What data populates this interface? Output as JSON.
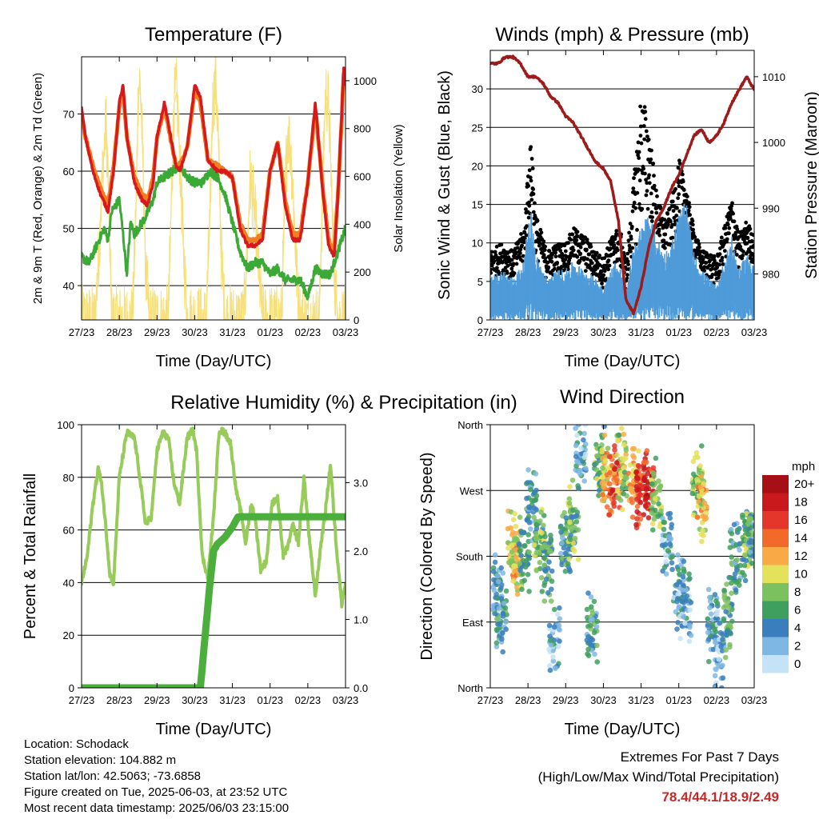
{
  "colors": {
    "temp_red": "#d7191c",
    "temp_orange": "#f07f22",
    "dewpoint_green": "#3aa935",
    "solar_yellow": "#f7e07a",
    "wind_blue": "#4f9bd9",
    "gust_black": "#000000",
    "pressure_maroon": "#9e1b1b",
    "rh_lightgreen": "#97cc5a",
    "rain_green": "#4cae3d",
    "extremes_red": "#c62828"
  },
  "x_ticks": [
    "27/23",
    "28/23",
    "29/23",
    "30/23",
    "31/23",
    "01/23",
    "02/23",
    "03/23"
  ],
  "chart_data": [
    {
      "id": "temperature",
      "type": "line",
      "title": "Temperature (F)",
      "xlabel": "Time (Day/UTC)",
      "ylabel": "2m & 9m T (Red, Orange) & 2m Td (Green)",
      "y2label": "Solar Insolation (Yellow)",
      "x_ticks": [
        "27/23",
        "28/23",
        "29/23",
        "30/23",
        "31/23",
        "01/23",
        "02/23",
        "03/23"
      ],
      "xlim": [
        0,
        7
      ],
      "ylim": [
        34,
        80
      ],
      "y_ticks": [
        40,
        50,
        60,
        70
      ],
      "y2lim": [
        0,
        1100
      ],
      "y2_ticks": [
        0,
        200,
        400,
        600,
        800,
        1000
      ],
      "series": [
        {
          "name": "2m T",
          "color": "#d7191c",
          "x": [
            0,
            0.1,
            0.3,
            0.5,
            0.7,
            0.85,
            1.0,
            1.1,
            1.2,
            1.4,
            1.6,
            1.75,
            1.9,
            2.0,
            2.2,
            2.5,
            2.6,
            2.8,
            3.0,
            3.15,
            3.35,
            3.6,
            3.8,
            4.0,
            4.2,
            4.4,
            4.6,
            4.8,
            5.0,
            5.2,
            5.4,
            5.6,
            5.8,
            6.0,
            6.2,
            6.4,
            6.55,
            6.7,
            6.8,
            6.9,
            6.95,
            7.0
          ],
          "values": [
            71,
            66,
            60,
            56,
            53,
            60,
            72,
            75,
            66,
            58,
            55,
            54,
            58,
            66,
            72,
            61,
            60,
            64,
            75,
            73,
            62,
            60,
            60,
            59,
            50,
            47,
            47,
            48,
            60,
            65,
            54,
            48,
            48,
            58,
            72,
            56,
            47,
            45,
            56,
            70,
            78,
            75
          ]
        },
        {
          "name": "9m T",
          "color": "#f07f22",
          "x": [
            0,
            0.1,
            0.3,
            0.5,
            0.7,
            0.85,
            1.0,
            1.1,
            1.2,
            1.4,
            1.6,
            1.75,
            1.9,
            2.0,
            2.2,
            2.5,
            2.6,
            2.8,
            3.0,
            3.15,
            3.35,
            3.6,
            3.8,
            4.0,
            4.2,
            4.4,
            4.6,
            4.8,
            5.0,
            5.2,
            5.4,
            5.6,
            5.8,
            6.0,
            6.2,
            6.4,
            6.55,
            6.7,
            6.8,
            6.9,
            6.95,
            7.0
          ],
          "values": [
            70,
            66,
            61,
            57,
            54,
            61,
            71,
            74,
            66,
            59,
            56,
            55,
            59,
            66,
            71,
            61,
            61,
            64,
            74,
            72,
            62,
            61,
            60,
            59,
            51,
            48,
            48,
            49,
            60,
            65,
            55,
            49,
            49,
            58,
            71,
            57,
            48,
            46,
            56,
            69,
            77,
            75
          ]
        },
        {
          "name": "2m Td",
          "color": "#3aa935",
          "x": [
            0,
            0.2,
            0.4,
            0.6,
            0.7,
            0.8,
            1.0,
            1.1,
            1.2,
            1.3,
            1.4,
            1.5,
            1.7,
            1.9,
            2.0,
            2.2,
            2.4,
            2.6,
            2.8,
            3.0,
            3.2,
            3.4,
            3.6,
            3.8,
            4.0,
            4.2,
            4.4,
            4.6,
            4.8,
            5.0,
            5.2,
            5.4,
            5.6,
            5.8,
            6.0,
            6.2,
            6.4,
            6.6,
            6.8,
            7.0
          ],
          "values": [
            45,
            44,
            47,
            50,
            48,
            53,
            55,
            49,
            42,
            51,
            49,
            50,
            52,
            55,
            58,
            59,
            60,
            61,
            59,
            58,
            58,
            60,
            59,
            56,
            51,
            46,
            43,
            44,
            44,
            42,
            43,
            41,
            41,
            41,
            38,
            43,
            42,
            42,
            46,
            50
          ]
        },
        {
          "name": "Solar",
          "color": "#f7e07a",
          "axis": "y2",
          "x": [
            0,
            0.35,
            0.45,
            0.55,
            0.65,
            0.72,
            0.8,
            1.35,
            1.45,
            1.5,
            1.55,
            1.62,
            1.7,
            1.8,
            2.3,
            2.38,
            2.45,
            2.52,
            2.6,
            2.7,
            2.8,
            3.3,
            3.4,
            3.47,
            3.55,
            3.62,
            3.7,
            3.8,
            4.3,
            4.4,
            4.47,
            4.55,
            4.62,
            4.7,
            4.8,
            5.3,
            5.4,
            5.47,
            5.55,
            5.62,
            5.7,
            5.8,
            6.3,
            6.4,
            6.47,
            6.55,
            6.62,
            6.7,
            6.8,
            7.0
          ],
          "values": [
            0,
            0,
            250,
            600,
            830,
            500,
            0,
            0,
            500,
            950,
            1000,
            700,
            200,
            0,
            0,
            500,
            900,
            950,
            700,
            300,
            0,
            0,
            400,
            880,
            1000,
            800,
            300,
            0,
            0,
            300,
            600,
            500,
            400,
            200,
            0,
            0,
            550,
            800,
            700,
            500,
            200,
            0,
            0,
            600,
            950,
            900,
            600,
            200,
            0,
            0
          ]
        }
      ]
    },
    {
      "id": "winds",
      "type": "scatter",
      "title": "Winds (mph) & Pressure (mb)",
      "xlabel": "Time (Day/UTC)",
      "ylabel": "Sonic Wind & Gust (Blue, Black)",
      "y2label": "Station Pressure (Maroon)",
      "x_ticks": [
        "27/23",
        "28/23",
        "29/23",
        "30/23",
        "31/23",
        "01/23",
        "02/23",
        "03/23"
      ],
      "xlim": [
        0,
        7
      ],
      "ylim": [
        0,
        35
      ],
      "y_ticks": [
        0,
        5,
        10,
        15,
        20,
        25,
        30
      ],
      "y2lim": [
        973,
        1014
      ],
      "y2_ticks": [
        980,
        990,
        1000,
        1010
      ],
      "pressure": {
        "name": "Station Pressure",
        "color": "#9e1b1b",
        "x": [
          0,
          0.2,
          0.4,
          0.6,
          0.8,
          1.0,
          1.2,
          1.4,
          1.6,
          1.8,
          2.0,
          2.2,
          2.4,
          2.6,
          2.8,
          3.0,
          3.2,
          3.4,
          3.5,
          3.6,
          3.8,
          4.0,
          4.2,
          4.4,
          4.6,
          4.8,
          5.0,
          5.2,
          5.4,
          5.6,
          5.8,
          6.0,
          6.2,
          6.4,
          6.6,
          6.8,
          7.0
        ],
        "values": [
          1012,
          1012,
          1013,
          1013,
          1012,
          1010,
          1010,
          1009,
          1007,
          1006,
          1004,
          1003,
          1001,
          999,
          997,
          996,
          994,
          988,
          982,
          976,
          974,
          978,
          984,
          988,
          990,
          993,
          995,
          998,
          1001,
          1002,
          1000,
          1001,
          1003,
          1006,
          1008,
          1010,
          1008
        ]
      },
      "wind_envelope": {
        "name": "Sonic Wind",
        "color": "#4f9bd9",
        "x": [
          0,
          0.3,
          0.6,
          0.9,
          1.0,
          1.1,
          1.2,
          1.5,
          1.8,
          2.0,
          2.2,
          2.5,
          2.8,
          3.0,
          3.3,
          3.5,
          3.6,
          3.8,
          4.0,
          4.2,
          4.4,
          4.6,
          4.8,
          5.0,
          5.2,
          5.4,
          5.6,
          5.8,
          6.0,
          6.2,
          6.4,
          6.6,
          6.8,
          7.0
        ],
        "values": [
          5,
          6,
          5,
          7,
          12,
          13,
          8,
          5,
          6,
          6,
          7,
          6,
          5,
          4,
          7,
          6,
          3,
          9,
          11,
          13,
          10,
          8,
          9,
          13,
          14,
          8,
          6,
          5,
          4,
          7,
          10,
          6,
          8,
          7
        ]
      },
      "gust_envelope": {
        "name": "Gust",
        "color": "#000000",
        "x": [
          0,
          0.3,
          0.6,
          0.9,
          1.0,
          1.1,
          1.2,
          1.5,
          1.8,
          2.0,
          2.2,
          2.5,
          2.8,
          3.0,
          3.3,
          3.5,
          3.6,
          3.8,
          4.0,
          4.2,
          4.4,
          4.6,
          4.8,
          5.0,
          5.2,
          5.4,
          5.6,
          5.8,
          6.0,
          6.2,
          6.4,
          6.6,
          6.8,
          7.0
        ],
        "values": [
          9,
          10,
          9,
          12,
          20,
          24,
          14,
          9,
          10,
          10,
          12,
          11,
          9,
          8,
          12,
          11,
          7,
          18,
          30,
          26,
          17,
          13,
          15,
          21,
          17,
          12,
          9,
          9,
          8,
          12,
          16,
          11,
          13,
          11
        ]
      }
    },
    {
      "id": "humidity",
      "type": "line",
      "title": "Relative Humidity (%) & Precipitation (in)",
      "xlabel": "Time (Day/UTC)",
      "ylabel": "Percent & Total Rainfall",
      "x_ticks": [
        "27/23",
        "28/23",
        "29/23",
        "30/23",
        "31/23",
        "01/23",
        "02/23",
        "03/23"
      ],
      "xlim": [
        0,
        7
      ],
      "ylim": [
        0,
        100
      ],
      "y_ticks": [
        0,
        20,
        40,
        60,
        80,
        100
      ],
      "y2lim": [
        0,
        3.846
      ],
      "y2_ticks": [
        "0.0",
        "1.0",
        "2.0",
        "3.0"
      ],
      "series": [
        {
          "name": "Relative Humidity",
          "color": "#97cc5a",
          "x": [
            0,
            0.15,
            0.3,
            0.45,
            0.55,
            0.65,
            0.75,
            0.85,
            1.0,
            1.2,
            1.4,
            1.5,
            1.7,
            1.85,
            2.0,
            2.15,
            2.3,
            2.45,
            2.6,
            2.8,
            2.95,
            3.05,
            3.2,
            3.35,
            3.5,
            3.65,
            3.8,
            3.95,
            4.1,
            4.25,
            4.35,
            4.5,
            4.6,
            4.75,
            4.9,
            5.05,
            5.2,
            5.35,
            5.5,
            5.6,
            5.75,
            5.9,
            6.05,
            6.2,
            6.35,
            6.45,
            6.6,
            6.75,
            6.9,
            7.0
          ],
          "values": [
            40,
            50,
            70,
            84,
            75,
            60,
            43,
            40,
            80,
            97,
            95,
            85,
            62,
            65,
            90,
            97,
            95,
            78,
            70,
            95,
            98,
            90,
            50,
            42,
            65,
            98,
            97,
            93,
            75,
            65,
            55,
            70,
            65,
            45,
            48,
            70,
            72,
            50,
            55,
            62,
            55,
            80,
            55,
            35,
            55,
            65,
            85,
            55,
            32,
            40
          ]
        },
        {
          "name": "Total Precipitation",
          "color": "#4cae3d",
          "axis": "y2",
          "x": [
            0,
            2.5,
            3.0,
            3.15,
            3.25,
            3.4,
            3.5,
            3.6,
            3.8,
            4.0,
            4.15,
            4.3,
            4.6,
            4.65,
            5.0,
            6.0,
            7.0
          ],
          "values": [
            0,
            0,
            0,
            0,
            0.6,
            1.5,
            2.0,
            2.1,
            2.2,
            2.35,
            2.5,
            2.5,
            2.5,
            2.5,
            2.5,
            2.5,
            2.5
          ]
        }
      ]
    },
    {
      "id": "wind_direction",
      "type": "scatter",
      "title": "Wind Direction",
      "xlabel": "Time (Day/UTC)",
      "ylabel": "Direction (Colored By Speed)",
      "x_ticks": [
        "27/23",
        "28/23",
        "29/23",
        "30/23",
        "31/23",
        "01/23",
        "02/23",
        "03/23"
      ],
      "xlim": [
        0,
        7
      ],
      "ylim": [
        0,
        360
      ],
      "y_ticks": [
        "North",
        "East",
        "South",
        "West",
        "North"
      ],
      "y_tick_values": [
        0,
        90,
        180,
        270,
        360
      ],
      "clusters": [
        {
          "x": 0.2,
          "dir": 130,
          "spd": 3
        },
        {
          "x": 0.3,
          "dir": 95,
          "spd": 5
        },
        {
          "x": 0.6,
          "dir": 190,
          "spd": 10
        },
        {
          "x": 0.7,
          "dir": 175,
          "spd": 11
        },
        {
          "x": 0.9,
          "dir": 190,
          "spd": 6
        },
        {
          "x": 1.1,
          "dir": 250,
          "spd": 4
        },
        {
          "x": 1.3,
          "dir": 200,
          "spd": 7
        },
        {
          "x": 1.5,
          "dir": 170,
          "spd": 6
        },
        {
          "x": 1.7,
          "dir": 60,
          "spd": 3
        },
        {
          "x": 2.0,
          "dir": 190,
          "spd": 5
        },
        {
          "x": 2.2,
          "dir": 230,
          "spd": 7
        },
        {
          "x": 2.4,
          "dir": 320,
          "spd": 3
        },
        {
          "x": 2.7,
          "dir": 80,
          "spd": 5
        },
        {
          "x": 2.9,
          "dir": 300,
          "spd": 7
        },
        {
          "x": 3.1,
          "dir": 290,
          "spd": 11
        },
        {
          "x": 3.3,
          "dir": 285,
          "spd": 15
        },
        {
          "x": 3.5,
          "dir": 300,
          "spd": 9
        },
        {
          "x": 3.8,
          "dir": 285,
          "spd": 12
        },
        {
          "x": 4.0,
          "dir": 270,
          "spd": 16
        },
        {
          "x": 4.2,
          "dir": 275,
          "spd": 17
        },
        {
          "x": 4.4,
          "dir": 260,
          "spd": 9
        },
        {
          "x": 4.7,
          "dir": 200,
          "spd": 3
        },
        {
          "x": 5.0,
          "dir": 130,
          "spd": 3
        },
        {
          "x": 5.2,
          "dir": 110,
          "spd": 3
        },
        {
          "x": 5.5,
          "dir": 280,
          "spd": 8
        },
        {
          "x": 5.6,
          "dir": 250,
          "spd": 11
        },
        {
          "x": 5.9,
          "dir": 90,
          "spd": 4
        },
        {
          "x": 6.1,
          "dir": 50,
          "spd": 2
        },
        {
          "x": 6.3,
          "dir": 100,
          "spd": 6
        },
        {
          "x": 6.5,
          "dir": 180,
          "spd": 5
        },
        {
          "x": 6.8,
          "dir": 200,
          "spd": 7
        },
        {
          "x": 6.9,
          "dir": 210,
          "spd": 5
        }
      ],
      "colorbar": {
        "unit": "mph",
        "labels": [
          "20+",
          "18",
          "16",
          "14",
          "12",
          "10",
          "8",
          "6",
          "4",
          "2",
          "0"
        ],
        "colors": [
          "#a50f15",
          "#c9191d",
          "#e5362c",
          "#f26a2a",
          "#f9a945",
          "#e4e15a",
          "#7cc160",
          "#3f9f5e",
          "#3a7fbd",
          "#7fb7e3",
          "#c4e3f7"
        ]
      }
    }
  ],
  "station": {
    "location": "Location: Schodack",
    "elevation": "Station elevation: 104.882 m",
    "latlon": "Station lat/lon: 42.5063; -73.6858",
    "created": "Figure created on Tue, 2025-06-03, at 23:52 UTC",
    "latest": "Most recent data timestamp: 2025/06/03 23:15:00"
  },
  "extremes": {
    "title": "Extremes For Past 7 Days",
    "subtitle": "(High/Low/Max Wind/Total Precipitation)",
    "values": "78.4/44.1/18.9/2.49"
  }
}
